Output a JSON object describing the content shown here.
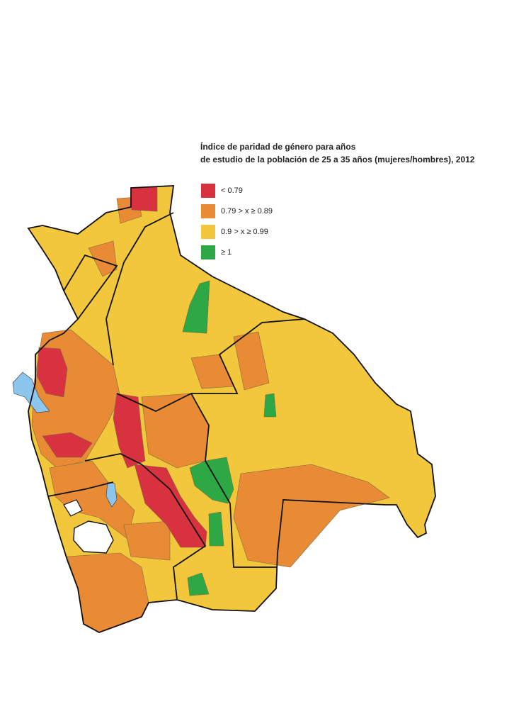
{
  "title": [
    "Índice de paridad de género para años",
    "de estudio de la población de 25 a 35 años (mujeres/hombres), 2012"
  ],
  "legend": [
    {
      "label": "< 0.79",
      "color": "#d83240"
    },
    {
      "label": "0.79 > x ≥ 0.89",
      "color": "#e98b35"
    },
    {
      "label": "0.9 > x ≥ 0.99",
      "color": "#f2c73c"
    },
    {
      "label": "≥ 1",
      "color": "#2ea844"
    }
  ]
}
